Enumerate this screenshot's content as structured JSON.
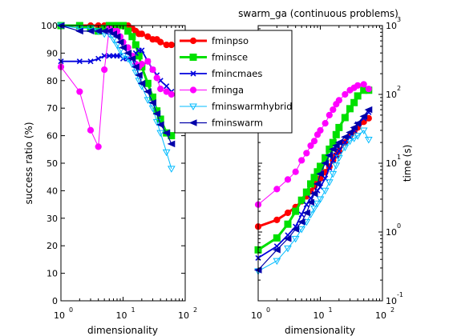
{
  "chart_data": [
    {
      "type": "line",
      "title": "",
      "xlabel": "dimensionality",
      "ylabel": "success ratio (%)",
      "xscale": "log",
      "xlim": [
        1,
        100
      ],
      "ylim": [
        0,
        100
      ],
      "x_ticks": [
        {
          "base": "10",
          "exp": "0"
        },
        {
          "base": "10",
          "exp": "1"
        },
        {
          "base": "10",
          "exp": "2"
        }
      ],
      "y_ticks": [
        "0",
        "10",
        "20",
        "30",
        "40",
        "50",
        "60",
        "70",
        "80",
        "90",
        "100"
      ],
      "series": [
        {
          "name": "fminpso",
          "color": "#ff0000",
          "marker": "circle",
          "x": [
            1,
            2,
            3,
            4,
            5,
            6,
            7,
            8,
            9,
            10,
            12,
            14,
            16,
            18,
            20,
            25,
            30,
            35,
            40,
            50,
            60
          ],
          "y": [
            100,
            100,
            100,
            100,
            100,
            100,
            100,
            100,
            100,
            100,
            100,
            99,
            98,
            97,
            97,
            96,
            95,
            95,
            94,
            93,
            93
          ]
        },
        {
          "name": "fminsce",
          "color": "#00e000",
          "marker": "square",
          "x": [
            1,
            2,
            3,
            4,
            5,
            6,
            7,
            8,
            9,
            10,
            12,
            14,
            16,
            18,
            20,
            25,
            30,
            35,
            40,
            50,
            60
          ],
          "y": [
            100,
            100,
            99,
            98,
            99,
            100,
            100,
            100,
            100,
            100,
            98,
            96,
            93,
            89,
            85,
            79,
            74,
            69,
            66,
            61,
            60
          ]
        },
        {
          "name": "fmincmaes",
          "color": "#0000dd",
          "marker": "x",
          "x": [
            1,
            2,
            3,
            4,
            5,
            6,
            7,
            8,
            9,
            10,
            12,
            14,
            16,
            18,
            20,
            25,
            30,
            35,
            40,
            50,
            60
          ],
          "y": [
            87,
            87,
            87,
            88,
            89,
            89,
            89,
            89,
            89,
            88,
            88,
            88,
            90,
            91,
            91,
            87,
            84,
            82,
            80,
            78,
            76
          ]
        },
        {
          "name": "fminga",
          "color": "#ff00ff",
          "marker": "circle",
          "x": [
            1,
            2,
            3,
            4,
            5,
            6,
            7,
            8,
            9,
            10,
            12,
            14,
            16,
            18,
            20,
            25,
            30,
            35,
            40,
            50,
            60
          ],
          "y": [
            85,
            76,
            62,
            56,
            84,
            99,
            98,
            98,
            96,
            94,
            92,
            89,
            86,
            85,
            86,
            87,
            84,
            81,
            77,
            76,
            75
          ]
        },
        {
          "name": "fminswarmhybrid",
          "color": "#00bbff",
          "marker": "triangle-down",
          "x": [
            1,
            2,
            3,
            4,
            5,
            6,
            7,
            8,
            9,
            10,
            12,
            14,
            16,
            18,
            20,
            25,
            30,
            35,
            40,
            50,
            60
          ],
          "y": [
            100,
            99,
            99,
            98,
            97,
            97,
            95,
            93,
            91,
            89,
            88,
            86,
            83,
            80,
            78,
            73,
            70,
            65,
            61,
            54,
            48
          ]
        },
        {
          "name": "fminswarm",
          "color": "#0000aa",
          "marker": "triangle-left",
          "x": [
            1,
            2,
            3,
            4,
            5,
            6,
            7,
            8,
            9,
            10,
            12,
            14,
            16,
            18,
            20,
            25,
            30,
            35,
            40,
            50,
            60
          ],
          "y": [
            100,
            98,
            98,
            98,
            98,
            98,
            97,
            96,
            94,
            92,
            90,
            88,
            85,
            82,
            79,
            76,
            72,
            68,
            64,
            61,
            57
          ]
        }
      ]
    },
    {
      "type": "line",
      "title": "swarm_ga (continuous problems)",
      "xlabel": "dimensionality",
      "ylabel": "time (s)",
      "xscale": "log",
      "yscale": "log",
      "xlim": [
        1,
        100
      ],
      "ylim": [
        0.1,
        1000
      ],
      "x_ticks": [
        {
          "base": "10",
          "exp": "0"
        },
        {
          "base": "10",
          "exp": "1"
        },
        {
          "base": "10",
          "exp": "2"
        }
      ],
      "y_ticks": [
        {
          "base": "10",
          "exp": "-1"
        },
        {
          "base": "10",
          "exp": "0"
        },
        {
          "base": "10",
          "exp": "1"
        },
        {
          "base": "10",
          "exp": "2"
        },
        {
          "base": "10",
          "exp": "3"
        }
      ],
      "series": [
        {
          "name": "fminpso",
          "color": "#ff0000",
          "marker": "circle",
          "x": [
            1,
            2,
            3,
            4,
            5,
            6,
            7,
            8,
            9,
            10,
            12,
            14,
            16,
            18,
            20,
            25,
            30,
            35,
            40,
            50,
            60
          ],
          "y": [
            1.2,
            1.5,
            1.9,
            2.3,
            2.8,
            3.3,
            3.9,
            4.6,
            5.3,
            6.0,
            7.4,
            8.9,
            11,
            13,
            15,
            20,
            25,
            29,
            33,
            40,
            45
          ]
        },
        {
          "name": "fminsce",
          "color": "#00e000",
          "marker": "square",
          "x": [
            1,
            2,
            3,
            4,
            5,
            6,
            7,
            8,
            9,
            10,
            12,
            14,
            16,
            18,
            20,
            25,
            30,
            35,
            40,
            50,
            60
          ],
          "y": [
            0.55,
            0.82,
            1.3,
            2.0,
            2.9,
            3.8,
            5.0,
            6.2,
            7.5,
            9.0,
            12,
            16,
            20,
            26,
            33,
            46,
            62,
            76,
            95,
            115,
            115
          ]
        },
        {
          "name": "fmincmaes",
          "color": "#0000dd",
          "marker": "x",
          "x": [
            1,
            2,
            3,
            4,
            5,
            6,
            7,
            8,
            9,
            10,
            12,
            14,
            16,
            18,
            20,
            25,
            30,
            35,
            40,
            50,
            60
          ],
          "y": [
            0.42,
            0.62,
            0.9,
            1.2,
            1.8,
            2.5,
            3.1,
            3.6,
            4.0,
            4.5,
            6.0,
            8.5,
            11,
            13,
            15,
            20,
            24,
            30,
            37,
            45,
            55
          ]
        },
        {
          "name": "fminga",
          "color": "#ff00ff",
          "marker": "circle",
          "x": [
            1,
            2,
            3,
            4,
            5,
            6,
            7,
            8,
            9,
            10,
            12,
            14,
            16,
            18,
            20,
            25,
            30,
            35,
            40,
            50,
            60
          ],
          "y": [
            2.5,
            4.2,
            5.8,
            7.5,
            11,
            14,
            18,
            21,
            26,
            30,
            38,
            50,
            60,
            72,
            82,
            100,
            115,
            125,
            135,
            140,
            120
          ]
        },
        {
          "name": "fminswarmhybrid",
          "color": "#00bbff",
          "marker": "triangle-down",
          "x": [
            1,
            2,
            3,
            4,
            5,
            6,
            7,
            8,
            9,
            10,
            12,
            14,
            16,
            18,
            20,
            25,
            30,
            35,
            40,
            50,
            60
          ],
          "y": [
            0.27,
            0.38,
            0.58,
            0.8,
            1.1,
            1.4,
            1.8,
            2.2,
            2.6,
            3.0,
            4.0,
            5.3,
            7.0,
            9.3,
            12,
            17,
            21,
            23,
            25,
            30,
            22
          ]
        },
        {
          "name": "fminswarm",
          "color": "#0000aa",
          "marker": "triangle-left",
          "x": [
            1,
            2,
            3,
            4,
            5,
            6,
            7,
            8,
            9,
            10,
            12,
            14,
            16,
            18,
            20,
            25,
            30,
            35,
            40,
            50,
            60
          ],
          "y": [
            0.28,
            0.55,
            0.8,
            1.1,
            1.4,
            1.9,
            2.7,
            3.6,
            5.0,
            7.0,
            10,
            13,
            16,
            18,
            20,
            24,
            28,
            33,
            38,
            48,
            60
          ]
        }
      ]
    }
  ]
}
